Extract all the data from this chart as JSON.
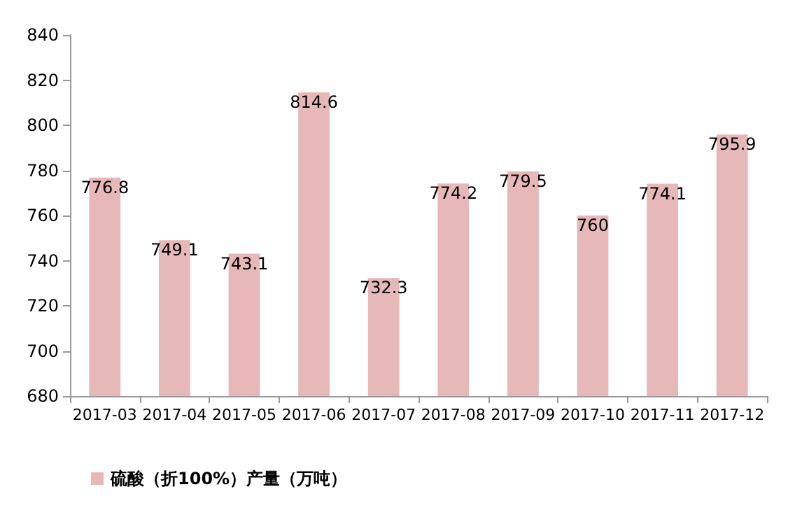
{
  "chart_data": {
    "type": "bar",
    "categories": [
      "2017-03",
      "2017-04",
      "2017-05",
      "2017-06",
      "2017-07",
      "2017-08",
      "2017-09",
      "2017-10",
      "2017-11",
      "2017-12"
    ],
    "series": [
      {
        "name": "硫酸（折100%）产量（万吨）",
        "color": "#e6b9b8",
        "values": [
          776.8,
          749.1,
          743.1,
          814.6,
          732.3,
          774.2,
          779.5,
          760,
          774.1,
          795.9
        ]
      }
    ],
    "ylim": [
      680,
      840
    ],
    "yticks": [
      680,
      700,
      720,
      740,
      760,
      780,
      800,
      820,
      840
    ],
    "grid": false,
    "legend": "bottom left",
    "data_labels": true
  }
}
